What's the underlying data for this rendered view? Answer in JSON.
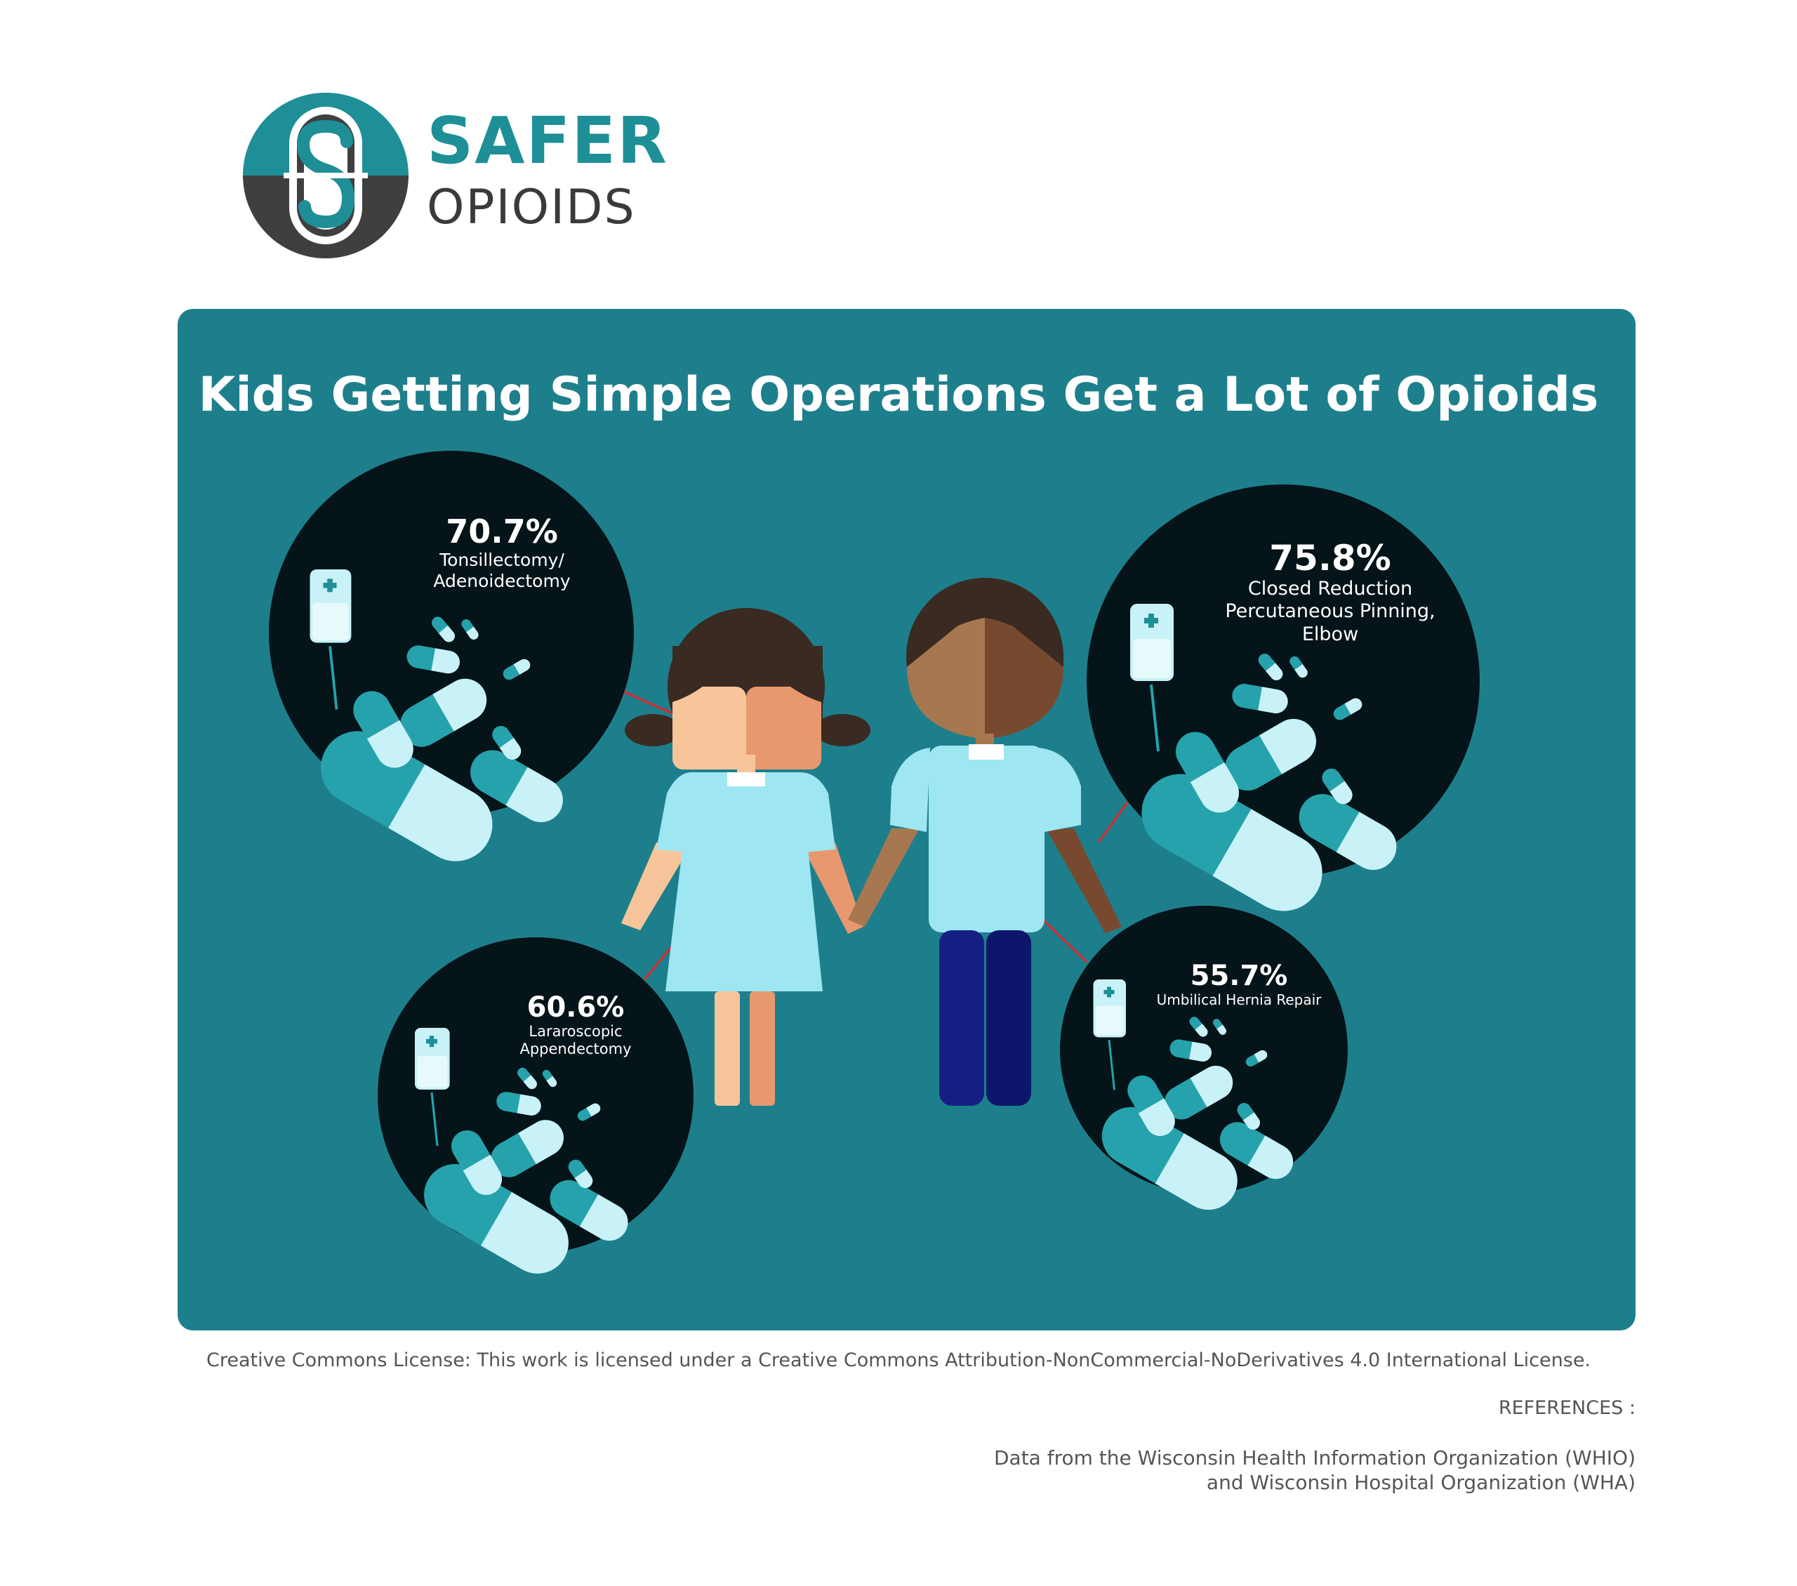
{
  "brand": {
    "line1": "SAFER",
    "line2": "OPIOIDS",
    "logo_icon": "capsule-s-logo",
    "colors": {
      "teal": "#1e8f97",
      "gray": "#3a3a3a"
    }
  },
  "headline": "Kids Getting Simple Operations Get a Lot of Opioids",
  "colors": {
    "panel": "#1e7f8c",
    "circle": "#041418",
    "pill_dark": "#26a2ac",
    "pill_light": "#c8f2f7",
    "connector": "#e0262b"
  },
  "stats": [
    {
      "percent": "70.7%",
      "procedure_lines": [
        "Tonsillectomy/",
        "Adenoidectomy"
      ]
    },
    {
      "percent": "75.8%",
      "procedure_lines": [
        "Closed Reduction",
        "Percutaneous Pinning,",
        "Elbow"
      ]
    },
    {
      "percent": "60.6%",
      "procedure_lines": [
        "Lararoscopic",
        "Appendectomy"
      ]
    },
    {
      "percent": "55.7%",
      "procedure_lines": [
        "Umbilical Hernia Repair"
      ]
    }
  ],
  "footer": {
    "license": "Creative Commons License:  This work is licensed under a Creative Commons Attribution-NonCommercial-NoDerivatives 4.0 International License.",
    "references_heading": "REFERENCES :",
    "references": [
      "Data from the Wisconsin Health Information Organization (WHIO)",
      "and Wisconsin Hospital Organization (WHA)"
    ]
  }
}
